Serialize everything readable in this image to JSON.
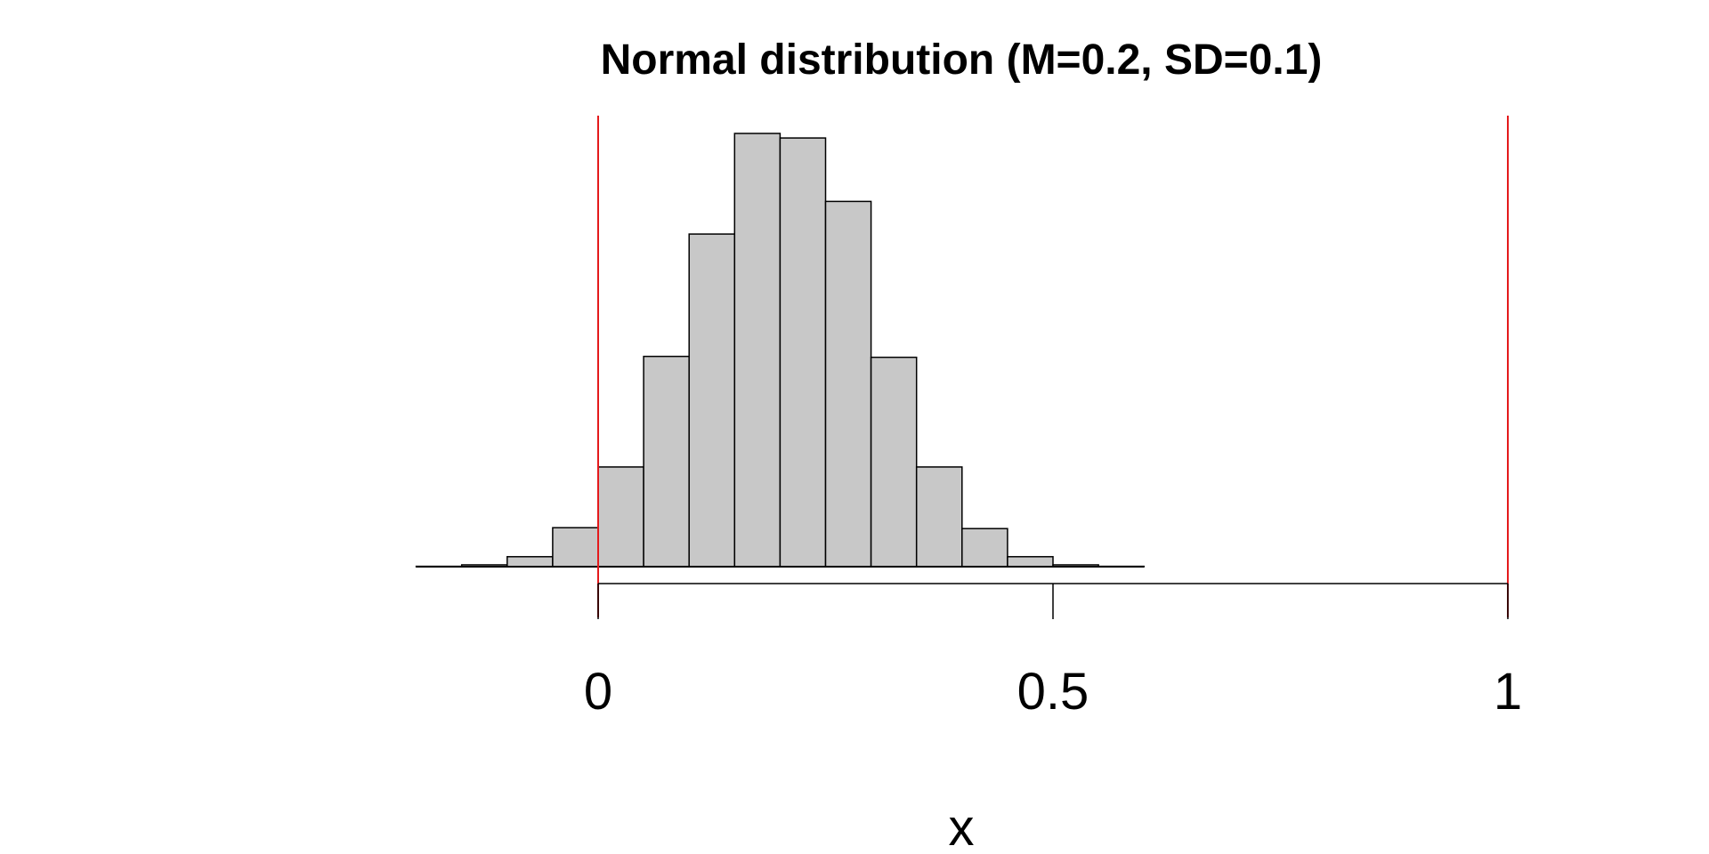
{
  "chart_data": {
    "type": "bar",
    "title": "Normal distribution (M=0.2, SD=0.1)",
    "xlabel": "x",
    "ylabel": "",
    "bin_edges": [
      -0.2,
      -0.15,
      -0.1,
      -0.05,
      0.0,
      0.05,
      0.1,
      0.15,
      0.2,
      0.25,
      0.3,
      0.35,
      0.4,
      0.45,
      0.5,
      0.55,
      0.6
    ],
    "counts": [
      0.4,
      2,
      11,
      43,
      110,
      232,
      367,
      478,
      473,
      403,
      231,
      110,
      42,
      11,
      2,
      0.4
    ],
    "ylim": [
      0,
      478
    ],
    "x_ticks": [
      0,
      0.5,
      1
    ],
    "x_tick_labels": [
      "0",
      "0.5",
      "1"
    ],
    "xlim": [
      0,
      1
    ],
    "reference_lines": [
      0,
      1
    ],
    "colors": {
      "bar_fill": "#c8c8c8",
      "bar_stroke": "#000000",
      "reference_line": "#e41a1c"
    }
  }
}
